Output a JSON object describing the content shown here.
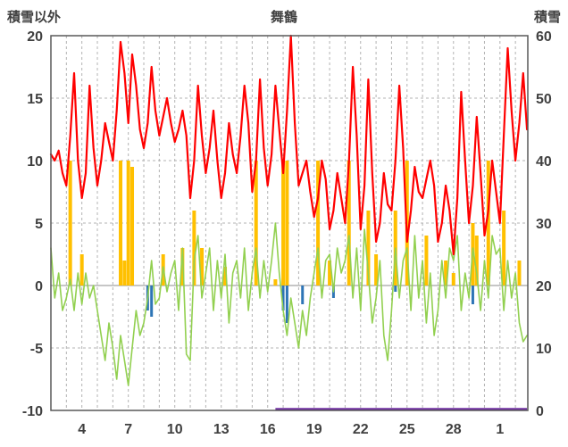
{
  "header": {
    "left_axis_title": "積雪以外",
    "title": "舞鶴",
    "right_axis_title": "積雪"
  },
  "colors": {
    "red": "#FF0000",
    "orange": "#FFC000",
    "green": "#92D050",
    "blue": "#2E75B6",
    "purple": "#7030A0",
    "grid": "#B3B3B3",
    "zero_line": "#8C8C8C",
    "border": "#595959",
    "text": "#404040",
    "background": "#FFFFFF"
  },
  "chart_data": {
    "type": "line",
    "title": "舞鶴",
    "legend": "none",
    "grid": "dashed",
    "left_axis": {
      "label": "積雪以外",
      "min": -10,
      "max": 20,
      "ticks": [
        20,
        15,
        10,
        5,
        0,
        -5,
        -10
      ]
    },
    "right_axis": {
      "label": "積雪",
      "min": 0,
      "max": 60,
      "ticks": [
        60,
        50,
        40,
        30,
        20,
        10,
        0
      ]
    },
    "x_axis": {
      "day_min": 2,
      "day_max": 32.8,
      "tick_days": [
        4,
        7,
        10,
        13,
        16,
        19,
        22,
        25,
        28,
        31
      ],
      "tick_labels": [
        "4",
        "7",
        "10",
        "13",
        "16",
        "19",
        "22",
        "25",
        "28",
        "1"
      ],
      "gridline_every_day": 1
    },
    "samples": {
      "day_start": 2,
      "day_step": 0.25,
      "temperature": [
        10.5,
        10,
        10.8,
        9,
        8,
        12,
        17,
        10,
        7,
        9,
        16,
        11,
        8,
        10,
        13,
        11.5,
        10,
        14,
        19.5,
        17,
        13,
        18.5,
        16,
        12.5,
        11,
        13,
        17.5,
        14,
        12,
        13.5,
        15,
        13,
        11.5,
        12.5,
        14,
        12,
        7,
        10,
        16,
        12,
        9,
        11,
        14,
        10,
        7,
        9,
        13,
        10.5,
        9,
        12,
        16,
        13,
        7.5,
        10,
        16.5,
        11,
        8,
        10.5,
        16,
        12.5,
        9,
        14,
        20,
        13,
        8,
        9,
        10,
        7.5,
        5.5,
        7,
        10,
        8.5,
        4.5,
        6,
        9,
        7,
        5,
        10,
        17.5,
        12,
        4.5,
        8,
        16.5,
        9,
        3.5,
        5,
        9,
        6.5,
        6,
        10,
        16,
        11,
        3.5,
        6,
        9.5,
        7.5,
        7,
        8.5,
        10,
        8,
        3.5,
        5,
        8,
        6,
        2.5,
        7,
        15.5,
        10,
        5,
        8,
        13.5,
        9,
        4,
        6,
        10,
        7.5,
        5,
        12,
        19,
        14,
        10,
        13,
        17,
        12.5
      ],
      "green_line": [
        3,
        -1,
        1,
        -2,
        -1,
        0.5,
        -2,
        1,
        -1.5,
        1,
        -1,
        0,
        -2,
        -4,
        -6,
        -3,
        -5,
        -7.5,
        -4,
        -6,
        -8,
        -5,
        -2,
        -4,
        -3,
        -1,
        2,
        -1.5,
        -1,
        1.5,
        -0.5,
        1,
        2,
        -2,
        3,
        -5.5,
        -6,
        2,
        4,
        -1,
        1,
        3,
        -2,
        2,
        -1,
        2.5,
        -3,
        1,
        2,
        -1,
        3,
        -2,
        1,
        3,
        -1,
        2,
        -0.5,
        2,
        5,
        1,
        -2,
        -4,
        -1,
        -3,
        -5,
        -2,
        -4,
        -1,
        1,
        3,
        -1,
        2,
        2.5,
        -0.5,
        3,
        1,
        2,
        4,
        -1,
        3,
        -2,
        4.5,
        1,
        -3,
        -1,
        2,
        -4,
        -6,
        -2,
        3,
        -1,
        2,
        3,
        -2,
        4,
        -1,
        2,
        -3,
        1,
        -4,
        -2,
        2,
        -1,
        3,
        2,
        4,
        -2,
        1,
        -1,
        3,
        1,
        -2,
        2,
        -1,
        4,
        2.5,
        3,
        -2,
        2,
        -1,
        1,
        -3,
        -4.5,
        -4
      ],
      "precip_bars": [
        0,
        0,
        0,
        0,
        0,
        10,
        0,
        0,
        2.5,
        0,
        0,
        0,
        0,
        0,
        0,
        0,
        0,
        0,
        10,
        2,
        10,
        9.5,
        0,
        0,
        0,
        0,
        0,
        0,
        0,
        2.5,
        0,
        0,
        0,
        0,
        3,
        0,
        0,
        6,
        0,
        3,
        0,
        0,
        0,
        0,
        0,
        1.5,
        0,
        0,
        0,
        0,
        0,
        0,
        0,
        10,
        0,
        0,
        0,
        0,
        0.5,
        0,
        10,
        10,
        0,
        0,
        0,
        0,
        0,
        0,
        0,
        10,
        0,
        0,
        2,
        0,
        0,
        0,
        0,
        10,
        0,
        0,
        0,
        0,
        6,
        0,
        2.5,
        0,
        0,
        0,
        0,
        6,
        0,
        0,
        10,
        0,
        0,
        0,
        0,
        4,
        0,
        0,
        0,
        0,
        2,
        0,
        1,
        0,
        0,
        0,
        0,
        5,
        4,
        0,
        0,
        10,
        0,
        0,
        0,
        6,
        0,
        0,
        0,
        2,
        0,
        0
      ],
      "blue_bars": [
        0,
        0,
        0,
        0,
        0,
        0,
        0,
        0,
        0,
        0,
        0,
        0,
        0,
        0,
        0,
        0,
        0,
        0,
        0,
        0,
        0,
        0,
        0,
        0,
        0,
        -2,
        -2.5,
        0,
        0,
        0,
        0,
        0,
        0,
        0,
        0,
        0,
        0,
        0,
        0,
        0,
        0,
        0,
        0,
        0,
        0,
        0,
        0,
        0,
        0,
        0,
        0,
        0,
        0,
        0,
        0,
        0,
        0,
        0,
        0,
        0,
        -2,
        -3,
        0,
        0,
        0,
        -1.5,
        0,
        0,
        0,
        0,
        0,
        0,
        0,
        -1,
        0,
        0,
        0,
        0,
        0,
        0,
        0,
        0,
        0,
        0,
        0,
        0,
        0,
        0,
        0,
        -0.5,
        0,
        0,
        0,
        0,
        0,
        0,
        0,
        0,
        0,
        0,
        0,
        0,
        0,
        0,
        0,
        0,
        0,
        0,
        0,
        -1.5,
        0,
        0,
        0,
        0,
        0,
        0,
        0,
        0,
        0,
        0,
        0,
        0,
        0,
        0
      ]
    },
    "snow_depth": {
      "day_start": 16.5,
      "day_end": 32.75,
      "value": 0,
      "axis": "right"
    }
  }
}
